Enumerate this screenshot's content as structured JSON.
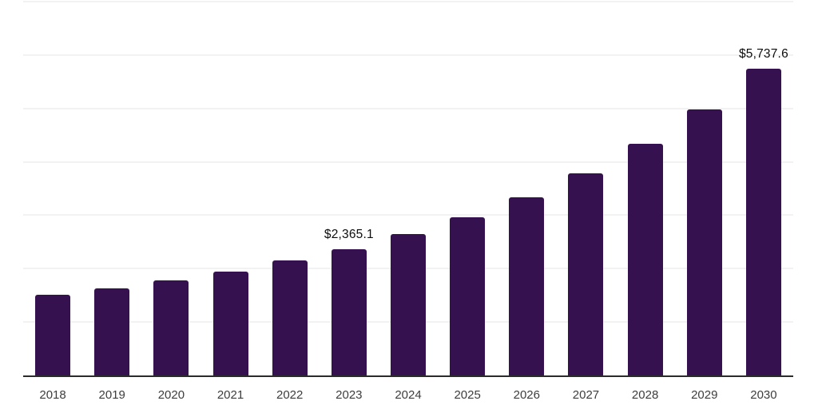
{
  "chart_data": {
    "type": "bar",
    "title": "",
    "xlabel": "",
    "ylabel": "",
    "categories": [
      "2018",
      "2019",
      "2020",
      "2021",
      "2022",
      "2023",
      "2024",
      "2025",
      "2026",
      "2027",
      "2028",
      "2029",
      "2030"
    ],
    "values": [
      1510,
      1630,
      1780,
      1940,
      2150,
      2365.1,
      2650,
      2960,
      3340,
      3780,
      4340,
      4980,
      5737.6
    ],
    "data_labels": [
      "",
      "",
      "",
      "",
      "",
      "$2,365.1",
      "",
      "",
      "",
      "",
      "",
      "",
      "$5,737.6"
    ],
    "ylim": [
      0,
      7000
    ],
    "gridline_interval": 1000,
    "grid": true,
    "legend": false,
    "colors": {
      "bar": "#35114f",
      "gridline": "#f2f2f2",
      "axis_line": "#2b2b2b",
      "tick_label": "#3d3d3d",
      "data_label": "#0d0d0d",
      "background": "#ffffff"
    }
  }
}
